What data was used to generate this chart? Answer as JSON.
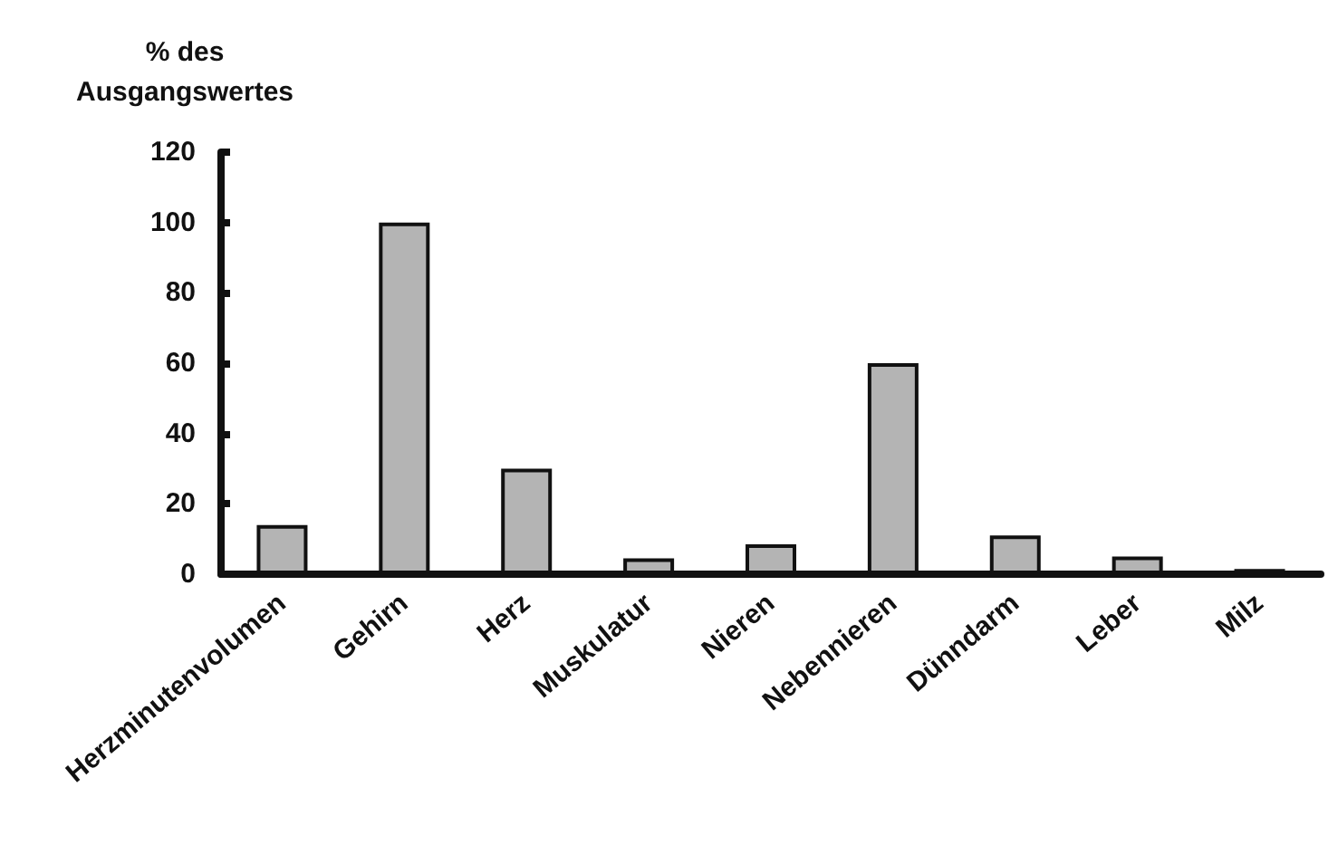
{
  "chart_data": {
    "type": "bar",
    "ylabel": "% des\nAusgangswertes",
    "categories": [
      "Herzminutenvolumen",
      "Gehirn",
      "Herz",
      "Muskulatur",
      "Nieren",
      "Nebennieren",
      "Dünndarm",
      "Leber",
      "Milz"
    ],
    "values": [
      14,
      100,
      30,
      4.5,
      8.5,
      60,
      11,
      5,
      1.5
    ],
    "color": "#b4b4b4",
    "ylim": [
      0,
      120
    ],
    "yticks": [
      0,
      20,
      40,
      60,
      80,
      100,
      120
    ],
    "grid": false
  }
}
